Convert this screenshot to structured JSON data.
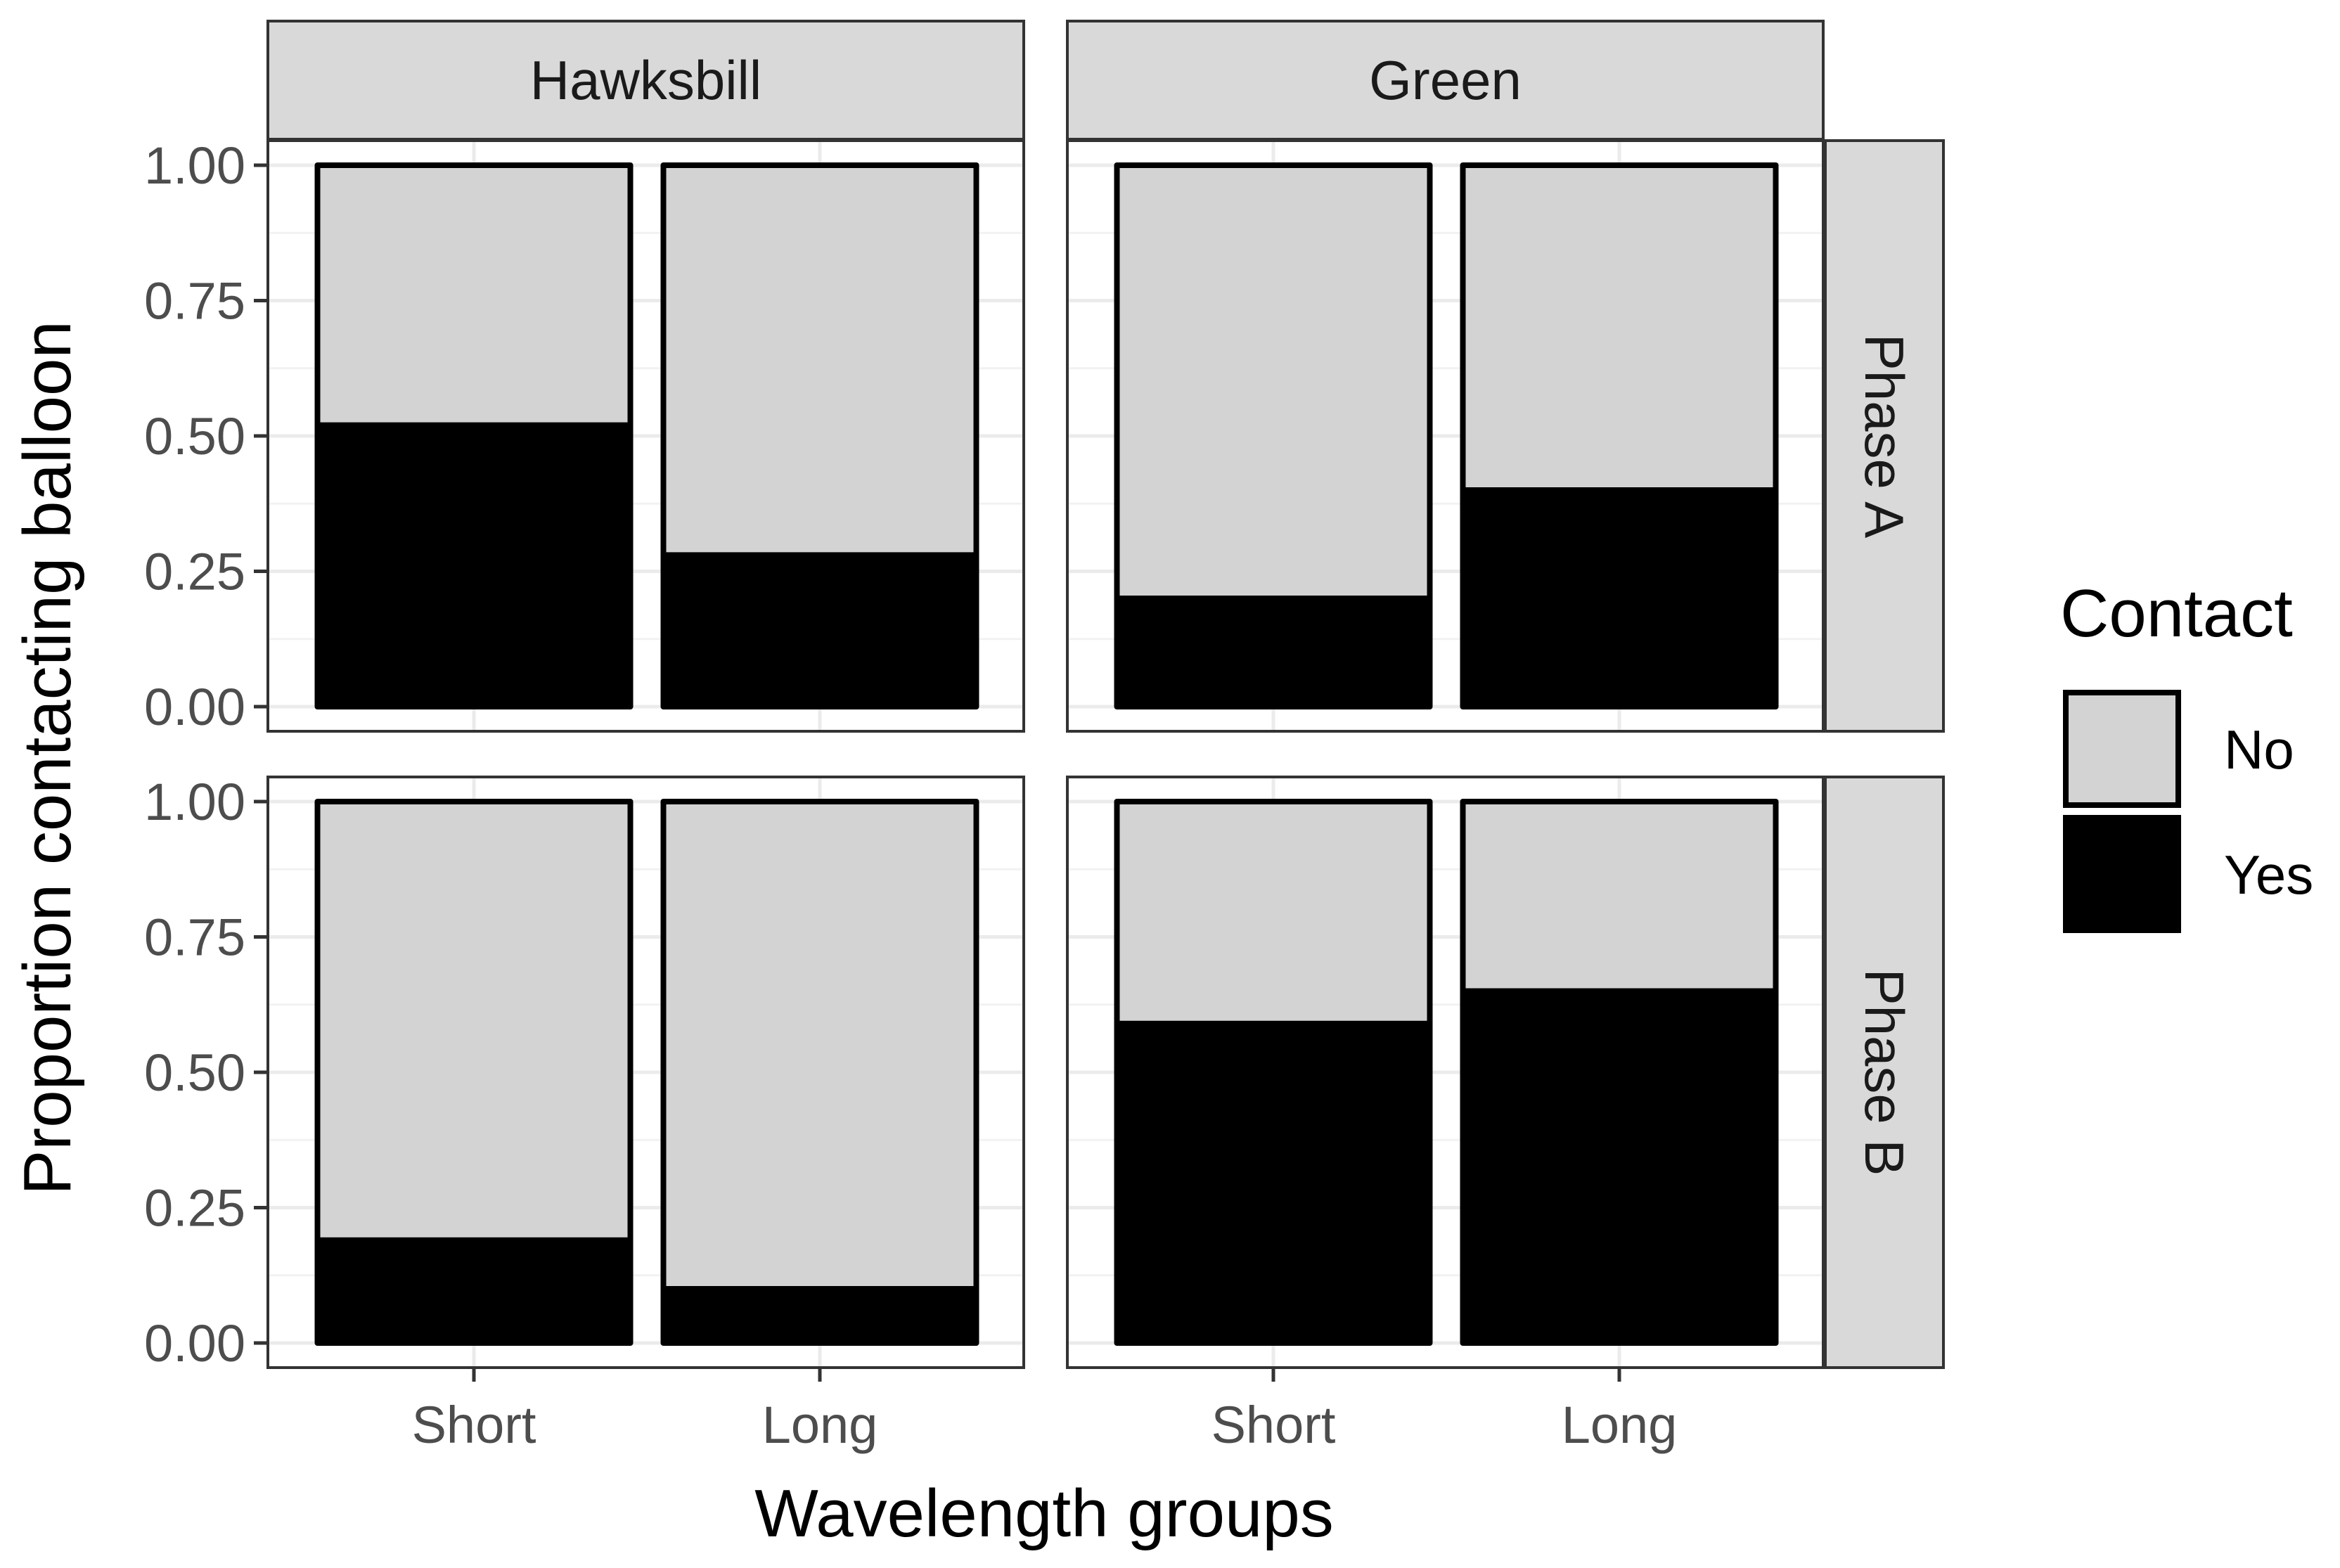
{
  "chart_data": {
    "type": "bar",
    "stacked": true,
    "position": "fill",
    "xlabel": "Wavelength groups",
    "ylabel": "Proportion contacting balloon",
    "ylim": [
      0,
      1
    ],
    "yticks": [
      "0.00",
      "0.25",
      "0.50",
      "0.75",
      "1.00"
    ],
    "categories": [
      "Short",
      "Long"
    ],
    "facet_columns": [
      "Hawksbill",
      "Green"
    ],
    "facet_rows": [
      "Phase A",
      "Phase B"
    ],
    "legend": {
      "title": "Contact",
      "position": "right",
      "entries": [
        {
          "name": "No",
          "color": "#d3d3d3"
        },
        {
          "name": "Yes",
          "color": "#000000"
        }
      ]
    },
    "grid": true,
    "panels": [
      {
        "column": "Hawksbill",
        "row": "Phase A",
        "series": [
          {
            "name": "Yes",
            "values": [
              0.52,
              0.28
            ]
          },
          {
            "name": "No",
            "values": [
              0.48,
              0.72
            ]
          }
        ]
      },
      {
        "column": "Green",
        "row": "Phase A",
        "series": [
          {
            "name": "Yes",
            "values": [
              0.2,
              0.4
            ]
          },
          {
            "name": "No",
            "values": [
              0.8,
              0.6
            ]
          }
        ]
      },
      {
        "column": "Hawksbill",
        "row": "Phase B",
        "series": [
          {
            "name": "Yes",
            "values": [
              0.19,
              0.1
            ]
          },
          {
            "name": "No",
            "values": [
              0.81,
              0.9
            ]
          }
        ]
      },
      {
        "column": "Green",
        "row": "Phase B",
        "series": [
          {
            "name": "Yes",
            "values": [
              0.59,
              0.65
            ]
          },
          {
            "name": "No",
            "values": [
              0.41,
              0.35
            ]
          }
        ]
      }
    ]
  }
}
